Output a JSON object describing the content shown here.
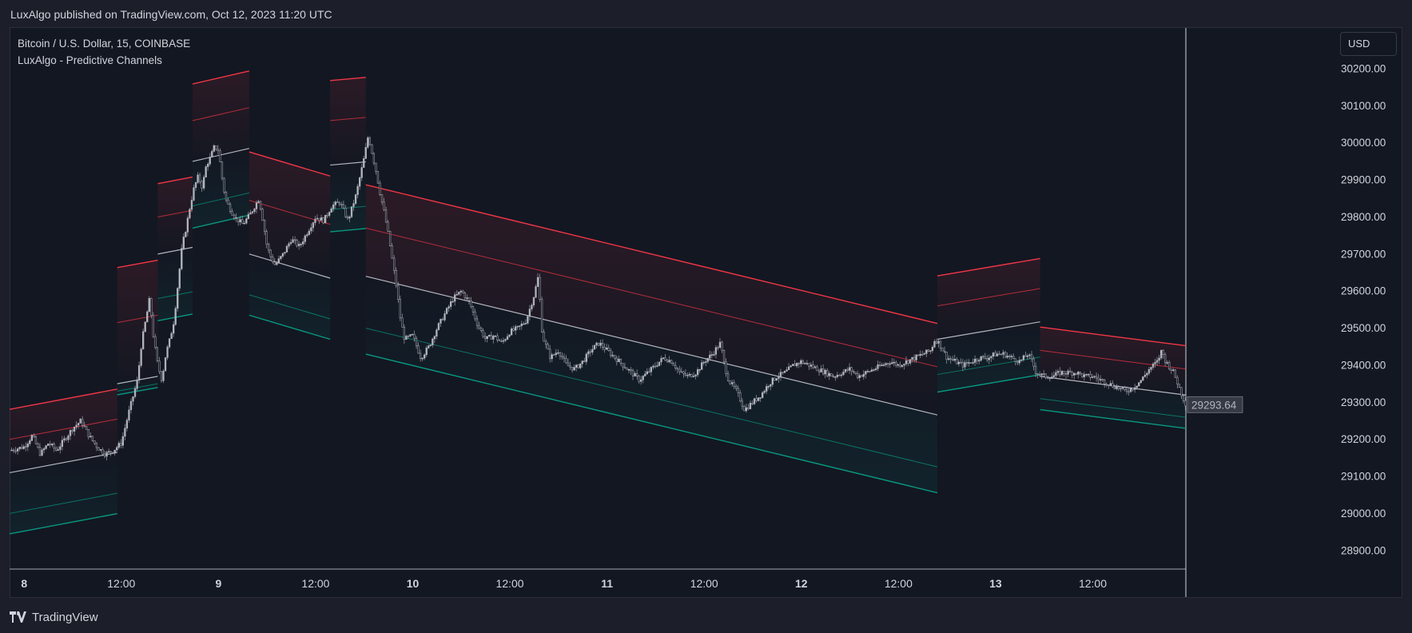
{
  "header": {
    "publisher_text": "LuxAlgo published on TradingView.com, Oct 12, 2023 11:20 UTC"
  },
  "legend": {
    "symbol": "Bitcoin / U.S. Dollar, 15, COINBASE",
    "indicator": "LuxAlgo - Predictive Channels"
  },
  "currency_button": "USD",
  "footer": {
    "brand": "TradingView"
  },
  "colors": {
    "background": "#131722",
    "resistance_line": "#f23645",
    "support_line": "#089981",
    "average_line": "#b2b5be",
    "candle": "#b2b5be",
    "axis_text": "#d1d4dc",
    "last_price_label_bg": "#363a45"
  },
  "chart_data": {
    "type": "line",
    "title": "Bitcoin / U.S. Dollar, 15, COINBASE",
    "series_name": "LuxAlgo - Predictive Channels",
    "ylim": [
      28850,
      30310
    ],
    "y_ticks": [
      "30200.00",
      "30100.00",
      "30000.00",
      "29900.00",
      "29800.00",
      "29700.00",
      "29600.00",
      "29500.00",
      "29400.00",
      "29300.00",
      "29200.00",
      "29100.00",
      "29000.00",
      "28900.00"
    ],
    "x_ticks": [
      "8",
      "12:00",
      "9",
      "12:00",
      "10",
      "12:00",
      "11",
      "12:00",
      "12",
      "12:00",
      "13",
      "12:00"
    ],
    "x_tick_positions_hours": [
      0,
      12,
      24,
      36,
      48,
      60,
      72,
      84,
      96,
      108,
      120,
      132
    ],
    "xlim_hours": [
      -1.8,
      143.5
    ],
    "last_price": 29293.64,
    "last_price_label": "29293.64",
    "grid": false,
    "price_path": [
      [
        -1.8,
        29170
      ],
      [
        0,
        29180
      ],
      [
        1,
        29210
      ],
      [
        2,
        29160
      ],
      [
        3,
        29190
      ],
      [
        4,
        29170
      ],
      [
        5,
        29200
      ],
      [
        6,
        29230
      ],
      [
        7,
        29250
      ],
      [
        8,
        29210
      ],
      [
        9,
        29180
      ],
      [
        10,
        29160
      ],
      [
        11,
        29170
      ],
      [
        12,
        29190
      ],
      [
        13,
        29280
      ],
      [
        14,
        29360
      ],
      [
        14.5,
        29460
      ],
      [
        15,
        29520
      ],
      [
        15.5,
        29580
      ],
      [
        16,
        29470
      ],
      [
        16.5,
        29400
      ],
      [
        17,
        29360
      ],
      [
        17.5,
        29430
      ],
      [
        18,
        29470
      ],
      [
        18.5,
        29520
      ],
      [
        19,
        29620
      ],
      [
        19.5,
        29720
      ],
      [
        20,
        29770
      ],
      [
        20.5,
        29830
      ],
      [
        21,
        29880
      ],
      [
        21.5,
        29910
      ],
      [
        22,
        29880
      ],
      [
        22.5,
        29940
      ],
      [
        23,
        29960
      ],
      [
        23.5,
        29990
      ],
      [
        24,
        29980
      ],
      [
        24.3,
        29930
      ],
      [
        24.6,
        29880
      ],
      [
        25,
        29840
      ],
      [
        26,
        29800
      ],
      [
        27,
        29780
      ],
      [
        28,
        29810
      ],
      [
        29,
        29850
      ],
      [
        29.5,
        29790
      ],
      [
        30,
        29720
      ],
      [
        30.5,
        29690
      ],
      [
        31,
        29670
      ],
      [
        32,
        29700
      ],
      [
        33,
        29740
      ],
      [
        34,
        29720
      ],
      [
        35,
        29760
      ],
      [
        36,
        29800
      ],
      [
        37,
        29790
      ],
      [
        38,
        29830
      ],
      [
        39,
        29840
      ],
      [
        40,
        29790
      ],
      [
        41,
        29860
      ],
      [
        42,
        29960
      ],
      [
        42.5,
        30020
      ],
      [
        43,
        29970
      ],
      [
        43.5,
        29920
      ],
      [
        44,
        29860
      ],
      [
        44.5,
        29810
      ],
      [
        45,
        29750
      ],
      [
        45.5,
        29680
      ],
      [
        46,
        29610
      ],
      [
        46.5,
        29520
      ],
      [
        47,
        29470
      ],
      [
        48,
        29480
      ],
      [
        49,
        29420
      ],
      [
        50,
        29450
      ],
      [
        51,
        29500
      ],
      [
        52,
        29540
      ],
      [
        53,
        29580
      ],
      [
        54,
        29600
      ],
      [
        55,
        29570
      ],
      [
        56,
        29510
      ],
      [
        57,
        29470
      ],
      [
        58,
        29480
      ],
      [
        59,
        29460
      ],
      [
        60,
        29490
      ],
      [
        61,
        29500
      ],
      [
        62,
        29520
      ],
      [
        63,
        29590
      ],
      [
        63.5,
        29640
      ],
      [
        64,
        29480
      ],
      [
        65,
        29420
      ],
      [
        66,
        29440
      ],
      [
        67,
        29400
      ],
      [
        68,
        29390
      ],
      [
        69,
        29410
      ],
      [
        70,
        29440
      ],
      [
        71,
        29460
      ],
      [
        72,
        29440
      ],
      [
        73,
        29420
      ],
      [
        74,
        29400
      ],
      [
        75,
        29380
      ],
      [
        76,
        29360
      ],
      [
        77,
        29380
      ],
      [
        78,
        29400
      ],
      [
        79,
        29420
      ],
      [
        80,
        29410
      ],
      [
        81,
        29380
      ],
      [
        82,
        29370
      ],
      [
        83,
        29380
      ],
      [
        84,
        29410
      ],
      [
        85,
        29430
      ],
      [
        86,
        29460
      ],
      [
        86.5,
        29400
      ],
      [
        87,
        29360
      ],
      [
        88,
        29330
      ],
      [
        89,
        29280
      ],
      [
        90,
        29300
      ],
      [
        91,
        29320
      ],
      [
        92,
        29350
      ],
      [
        93,
        29370
      ],
      [
        94,
        29380
      ],
      [
        95,
        29400
      ],
      [
        96,
        29410
      ],
      [
        97,
        29400
      ],
      [
        98,
        29390
      ],
      [
        99,
        29380
      ],
      [
        100,
        29370
      ],
      [
        101,
        29380
      ],
      [
        102,
        29390
      ],
      [
        103,
        29370
      ],
      [
        104,
        29380
      ],
      [
        105,
        29390
      ],
      [
        106,
        29400
      ],
      [
        107,
        29410
      ],
      [
        108,
        29400
      ],
      [
        109,
        29410
      ],
      [
        110,
        29420
      ],
      [
        111,
        29430
      ],
      [
        112,
        29440
      ],
      [
        112.5,
        29470
      ],
      [
        113,
        29460
      ],
      [
        114,
        29420
      ],
      [
        115,
        29410
      ],
      [
        116,
        29400
      ],
      [
        117,
        29410
      ],
      [
        118,
        29420
      ],
      [
        119,
        29420
      ],
      [
        120,
        29430
      ],
      [
        121,
        29430
      ],
      [
        122,
        29420
      ],
      [
        123,
        29410
      ],
      [
        124,
        29430
      ],
      [
        124.5,
        29410
      ],
      [
        125,
        29380
      ],
      [
        126,
        29370
      ],
      [
        127,
        29370
      ],
      [
        128,
        29380
      ],
      [
        129,
        29380
      ],
      [
        130,
        29380
      ],
      [
        131,
        29370
      ],
      [
        132,
        29370
      ],
      [
        133,
        29360
      ],
      [
        134,
        29350
      ],
      [
        135,
        29340
      ],
      [
        136,
        29330
      ],
      [
        137,
        29340
      ],
      [
        138,
        29360
      ],
      [
        139,
        29390
      ],
      [
        140,
        29410
      ],
      [
        140.5,
        29440
      ],
      [
        141,
        29410
      ],
      [
        142,
        29380
      ],
      [
        143,
        29320
      ],
      [
        143.5,
        29294
      ]
    ],
    "channels": [
      {
        "x": [
          -1.8,
          11.5
        ],
        "top": 29200,
        "avg": 29110,
        "bottom": 29000,
        "slope": 4.1
      },
      {
        "x": [
          11.5,
          16.5
        ],
        "top": 29515,
        "avg": 29350,
        "bottom": 29330,
        "slope": 4.0
      },
      {
        "x": [
          16.5,
          20.8
        ],
        "top": 29800,
        "avg": 29700,
        "bottom": 29580,
        "slope": 4.2
      },
      {
        "x": [
          20.8,
          27.8
        ],
        "top": 30060,
        "avg": 29950,
        "bottom": 29830,
        "slope": 5.0
      },
      {
        "x": [
          27.8,
          37.8
        ],
        "top": 29845,
        "avg": 29700,
        "bottom": 29590,
        "slope": -6.5
      },
      {
        "x": [
          37.8,
          42.2
        ],
        "top": 30060,
        "avg": 29940,
        "bottom": 29820,
        "slope": 2.0
      },
      {
        "x": [
          42.2,
          112.8
        ],
        "top": 29770,
        "avg": 29640,
        "bottom": 29500,
        "slope": -5.3
      },
      {
        "x": [
          112.8,
          125.5
        ],
        "top": 29560,
        "avg": 29470,
        "bottom": 29375,
        "slope": 3.7
      },
      {
        "x": [
          125.5,
          143.5
        ],
        "top": 29440,
        "avg": 29370,
        "bottom": 29310,
        "slope": -2.8
      }
    ]
  }
}
